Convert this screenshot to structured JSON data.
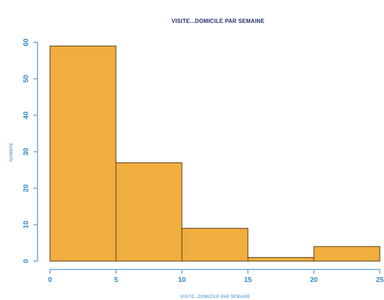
{
  "chart_data": {
    "type": "bar",
    "title": "VISITE...DOMICILE PAR SEMAINE",
    "xlabel": "VISITE...DOMICILE PAR SEMAINE",
    "ylabel": "NOMBRE",
    "bins": [
      {
        "start": 0,
        "end": 5,
        "value": 59
      },
      {
        "start": 5,
        "end": 10,
        "value": 27
      },
      {
        "start": 10,
        "end": 15,
        "value": 9
      },
      {
        "start": 15,
        "end": 20,
        "value": 1
      },
      {
        "start": 20,
        "end": 25,
        "value": 4
      }
    ],
    "x_ticks": [
      0,
      5,
      10,
      15,
      20,
      25
    ],
    "y_ticks": [
      0,
      10,
      20,
      30,
      40,
      50,
      60
    ],
    "xlim": [
      0,
      25
    ],
    "ylim": [
      0,
      60
    ],
    "grid": false,
    "legend": "none"
  },
  "colors": {
    "bar_fill": "#f1ad3d",
    "bar_stroke": "#4b3a1b",
    "axis": "#6aa9dd",
    "tick_text": "#2f87c9",
    "title": "#1f2f6b"
  }
}
